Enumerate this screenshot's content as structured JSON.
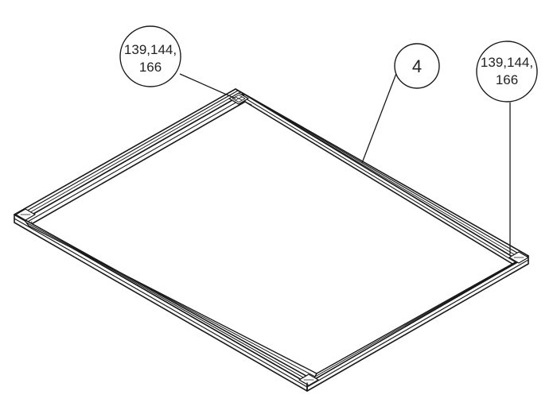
{
  "callouts": [
    {
      "id": "callout-left",
      "lines": [
        "139,144,",
        "166"
      ]
    },
    {
      "id": "callout-middle",
      "lines": [
        "4"
      ]
    },
    {
      "id": "callout-right",
      "lines": [
        "139,144,",
        "166"
      ]
    }
  ],
  "colors": {
    "line": "#1a1a1a",
    "background": "#ffffff"
  }
}
